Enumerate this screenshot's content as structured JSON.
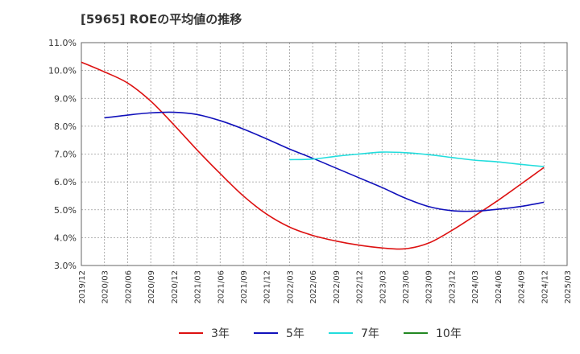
{
  "chart_data": {
    "type": "line",
    "title": "[5965]  ROEの平均値の推移",
    "xlabel": "",
    "ylabel": "",
    "ylim": [
      3.0,
      11.0
    ],
    "yticks": [
      3.0,
      4.0,
      5.0,
      6.0,
      7.0,
      8.0,
      9.0,
      10.0,
      11.0
    ],
    "ytick_labels": [
      "3.0%",
      "4.0%",
      "5.0%",
      "6.0%",
      "7.0%",
      "8.0%",
      "9.0%",
      "10.0%",
      "11.0%"
    ],
    "x_categories": [
      "2019/12",
      "2020/03",
      "2020/06",
      "2020/09",
      "2020/12",
      "2021/03",
      "2021/06",
      "2021/09",
      "2021/12",
      "2022/03",
      "2022/06",
      "2022/09",
      "2022/12",
      "2023/03",
      "2023/06",
      "2023/09",
      "2023/12",
      "2024/03",
      "2024/06",
      "2024/09",
      "2024/12",
      "2025/03"
    ],
    "series": [
      {
        "name": "3年",
        "color": "#dd1111",
        "values": [
          10.3,
          9.95,
          9.55,
          8.9,
          8.05,
          7.15,
          6.3,
          5.5,
          4.85,
          4.38,
          4.08,
          3.88,
          3.73,
          3.63,
          3.6,
          3.8,
          4.25,
          4.78,
          5.33,
          5.92,
          6.52,
          null
        ]
      },
      {
        "name": "5年",
        "color": "#1111bb",
        "values": [
          null,
          8.3,
          8.4,
          8.48,
          8.5,
          8.42,
          8.2,
          7.9,
          7.55,
          7.18,
          6.85,
          6.5,
          6.15,
          5.8,
          5.42,
          5.12,
          4.97,
          4.95,
          5.02,
          5.12,
          5.27,
          null
        ]
      },
      {
        "name": "7年",
        "color": "#22dddd",
        "values": [
          null,
          null,
          null,
          null,
          null,
          null,
          null,
          null,
          null,
          6.8,
          6.82,
          6.92,
          7.0,
          7.07,
          7.05,
          6.98,
          6.88,
          6.78,
          6.72,
          6.63,
          6.55,
          null
        ]
      },
      {
        "name": "10年",
        "color": "#228822",
        "values": [
          null,
          null,
          null,
          null,
          null,
          null,
          null,
          null,
          null,
          null,
          null,
          null,
          null,
          null,
          null,
          null,
          null,
          null,
          null,
          null,
          null,
          null
        ]
      }
    ],
    "legend_position": "bottom"
  }
}
